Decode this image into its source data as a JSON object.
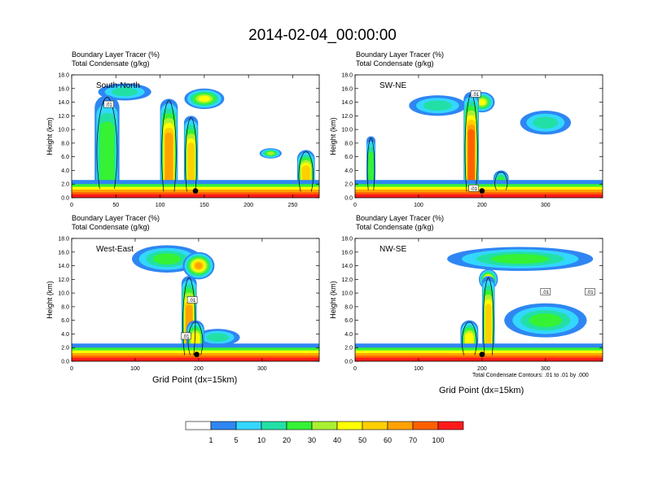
{
  "title": "2014-02-04_00:00:00",
  "colors": [
    "#ffffff",
    "#2f86f2",
    "#33d7ff",
    "#22e0a5",
    "#35f235",
    "#aaf032",
    "#ffff00",
    "#ffd000",
    "#ffa200",
    "#ff6000",
    "#ff1a1a"
  ],
  "contour_color": "#000000",
  "footnote": "Total Condensate Contours: .01 to .01 by .000",
  "chart_data": [
    {
      "type": "heatmap",
      "panel_label": "South-North",
      "header_line1": "Boundary Layer Tracer   (%)",
      "header_line2": "Total Condensate   (g/kg)",
      "ylabel": "Height (km)",
      "xlabel": "",
      "xlim": [
        0,
        280
      ],
      "ylim": [
        0,
        18
      ],
      "xticks": [
        0,
        50,
        100,
        150,
        200,
        250
      ],
      "yticks": [
        "0.0",
        "2.0",
        "4.0",
        "6.0",
        "8.0",
        "10.0",
        "12.0",
        "14.0",
        "16.0",
        "18.0"
      ],
      "marker_x": 140,
      "plumes": [
        {
          "x": 110,
          "base": 0.4,
          "top": 14.5,
          "w": 10,
          "level": 8
        },
        {
          "x": 135,
          "base": 0.4,
          "top": 12.0,
          "w": 8,
          "level": 7
        },
        {
          "x": 40,
          "base": 0.8,
          "top": 15.0,
          "w": 14,
          "level": 4
        },
        {
          "x": 265,
          "base": 0.4,
          "top": 7.0,
          "w": 10,
          "level": 7
        }
      ],
      "anvils": [
        {
          "x": 60,
          "y": 15.5,
          "w": 60,
          "h": 2.5,
          "level": 3
        },
        {
          "x": 150,
          "y": 14.5,
          "w": 45,
          "h": 3.0,
          "level": 6
        },
        {
          "x": 225,
          "y": 6.5,
          "w": 25,
          "h": 1.5,
          "level": 5
        }
      ],
      "contour_labels": [
        {
          "x": 42,
          "y": 13.7,
          "text": ".01"
        }
      ]
    },
    {
      "type": "heatmap",
      "panel_label": "SW-NE",
      "header_line1": "Boundary Layer Tracer   (%)",
      "header_line2": "Total Condensate   (g/kg)",
      "ylabel": "Height (km)",
      "xlabel": "",
      "xlim": [
        0,
        390
      ],
      "ylim": [
        0,
        18
      ],
      "xticks": [
        0,
        100,
        200,
        300
      ],
      "yticks": [
        "0.0",
        "2.0",
        "4.0",
        "6.0",
        "8.0",
        "10.0",
        "12.0",
        "14.0",
        "16.0",
        "18.0"
      ],
      "marker_x": 200,
      "plumes": [
        {
          "x": 183,
          "base": 0.4,
          "top": 15.5,
          "w": 12,
          "level": 9
        },
        {
          "x": 25,
          "base": 0.6,
          "top": 9.0,
          "w": 7,
          "level": 4
        },
        {
          "x": 230,
          "base": 0.6,
          "top": 4.0,
          "w": 12,
          "level": 4
        }
      ],
      "anvils": [
        {
          "x": 130,
          "y": 13.5,
          "w": 90,
          "h": 3.0,
          "level": 3
        },
        {
          "x": 200,
          "y": 14.0,
          "w": 40,
          "h": 3.0,
          "level": 6
        },
        {
          "x": 300,
          "y": 11.0,
          "w": 80,
          "h": 3.5,
          "level": 3
        }
      ],
      "contour_labels": [
        {
          "x": 190,
          "y": 15.2,
          "text": ".01"
        },
        {
          "x": 187,
          "y": 1.4,
          "text": ".01"
        }
      ]
    },
    {
      "type": "heatmap",
      "panel_label": "West-East",
      "header_line1": "Boundary Layer Tracer   (%)",
      "header_line2": "Total Condensate   (g/kg)",
      "ylabel": "Height (km)",
      "xlabel": "Grid Point (dx=15km)",
      "xlim": [
        0,
        390
      ],
      "ylim": [
        0,
        18
      ],
      "xticks": [
        0,
        100,
        200,
        300
      ],
      "yticks": [
        "0.0",
        "2.0",
        "4.0",
        "6.0",
        "8.0",
        "10.0",
        "12.0",
        "14.0",
        "16.0",
        "18.0"
      ],
      "marker_x": 197,
      "plumes": [
        {
          "x": 185,
          "base": 0.4,
          "top": 12.5,
          "w": 12,
          "level": 8
        },
        {
          "x": 195,
          "base": 0.4,
          "top": 6.0,
          "w": 14,
          "level": 6
        }
      ],
      "anvils": [
        {
          "x": 150,
          "y": 15.0,
          "w": 110,
          "h": 4.0,
          "level": 4
        },
        {
          "x": 200,
          "y": 14.0,
          "w": 50,
          "h": 4.0,
          "level": 8
        },
        {
          "x": 230,
          "y": 3.5,
          "w": 70,
          "h": 2.5,
          "level": 3
        }
      ],
      "contour_labels": [
        {
          "x": 190,
          "y": 9.0,
          "text": ".01"
        },
        {
          "x": 180,
          "y": 3.7,
          "text": ".01"
        }
      ]
    },
    {
      "type": "heatmap",
      "panel_label": "NW-SE",
      "header_line1": "Boundary Layer Tracer   (%)",
      "header_line2": "Total Condensate   (g/kg)",
      "ylabel": "Height (km)",
      "xlabel": "Grid Point (dx=15km)",
      "xlim": [
        0,
        390
      ],
      "ylim": [
        0,
        18
      ],
      "xticks": [
        0,
        100,
        200,
        300
      ],
      "yticks": [
        "0.0",
        "2.0",
        "4.0",
        "6.0",
        "8.0",
        "10.0",
        "12.0",
        "14.0",
        "16.0",
        "18.0"
      ],
      "marker_x": 200,
      "plumes": [
        {
          "x": 180,
          "base": 0.4,
          "top": 6.0,
          "w": 14,
          "level": 6
        },
        {
          "x": 210,
          "base": 0.4,
          "top": 12.5,
          "w": 10,
          "level": 7
        }
      ],
      "anvils": [
        {
          "x": 260,
          "y": 15.0,
          "w": 230,
          "h": 3.5,
          "level": 4
        },
        {
          "x": 300,
          "y": 6.0,
          "w": 130,
          "h": 5.0,
          "level": 4
        },
        {
          "x": 210,
          "y": 12.0,
          "w": 30,
          "h": 3.0,
          "level": 8
        }
      ],
      "contour_labels": [
        {
          "x": 300,
          "y": 10.2,
          "text": ".01"
        },
        {
          "x": 370,
          "y": 10.2,
          "text": ".01"
        }
      ]
    }
  ],
  "colorbar": {
    "labels": [
      "1",
      "5",
      "10",
      "20",
      "30",
      "40",
      "50",
      "60",
      "70",
      "100"
    ]
  }
}
